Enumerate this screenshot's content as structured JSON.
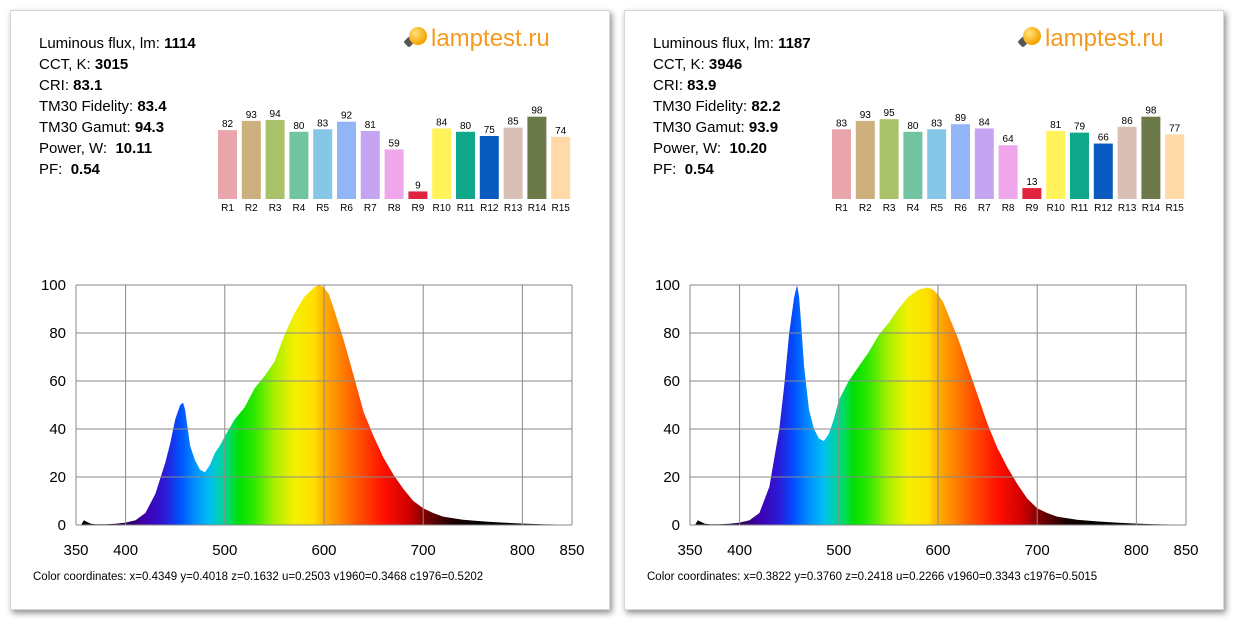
{
  "cards": [
    {
      "stats": [
        {
          "label": "Luminous flux, lm:",
          "value": "1114"
        },
        {
          "label": "CCT, K:",
          "value": "3015"
        },
        {
          "label": "CRI:",
          "value": "83.1"
        },
        {
          "label": "TM30 Fidelity:",
          "value": "83.4"
        },
        {
          "label": "TM30 Gamut:",
          "value": "94.3"
        },
        {
          "label": "Power, W:",
          "value": "10.11"
        },
        {
          "label": "PF:",
          "value": "0.54"
        }
      ],
      "logo": "lamptest.ru",
      "coords": "Color coordinates: x=0.4349 y=0.4018 z=0.1632 u=0.2503 v1960=0.3468 c1976=0.5202"
    },
    {
      "stats": [
        {
          "label": "Luminous flux, lm:",
          "value": "1187"
        },
        {
          "label": "CCT, K:",
          "value": "3946"
        },
        {
          "label": "CRI:",
          "value": "83.9"
        },
        {
          "label": "TM30 Fidelity:",
          "value": "82.2"
        },
        {
          "label": "TM30 Gamut:",
          "value": "93.9"
        },
        {
          "label": "Power, W:",
          "value": "10.20"
        },
        {
          "label": "PF:",
          "value": "0.54"
        }
      ],
      "logo": "lamptest.ru",
      "coords": "Color coordinates: x=0.3822 y=0.3760 z=0.2418 u=0.2266 v1960=0.3343 c1976=0.5015"
    }
  ],
  "chart_data": [
    {
      "type": "bar",
      "categories": [
        "R1",
        "R2",
        "R3",
        "R4",
        "R5",
        "R6",
        "R7",
        "R8",
        "R9",
        "R10",
        "R11",
        "R12",
        "R13",
        "R14",
        "R15"
      ],
      "values": [
        82,
        93,
        94,
        80,
        83,
        92,
        81,
        59,
        9,
        84,
        80,
        75,
        85,
        98,
        74
      ],
      "colors": [
        "#e8a6ac",
        "#cdb07e",
        "#a9c26a",
        "#72c4a0",
        "#86c6e6",
        "#92b5f7",
        "#c5a4f2",
        "#efa6eb",
        "#e0243e",
        "#fff359",
        "#10a88a",
        "#0a5bbf",
        "#d9c0b6",
        "#6c7a49",
        "#ffd9a6"
      ],
      "ylim": [
        0,
        100
      ]
    },
    {
      "type": "area",
      "xlim": [
        350,
        850
      ],
      "ylim": [
        0,
        100
      ],
      "xticks": [
        350,
        400,
        500,
        600,
        700,
        800,
        850
      ],
      "yticks": [
        0,
        20,
        40,
        60,
        80,
        100
      ],
      "grid": true,
      "x": [
        350,
        355,
        358,
        360,
        365,
        370,
        380,
        390,
        400,
        410,
        420,
        430,
        440,
        445,
        450,
        455,
        458,
        460,
        462,
        465,
        470,
        475,
        480,
        485,
        490,
        495,
        500,
        510,
        520,
        530,
        540,
        550,
        560,
        570,
        580,
        590,
        595,
        600,
        605,
        610,
        620,
        630,
        640,
        650,
        660,
        670,
        680,
        690,
        700,
        710,
        720,
        740,
        760,
        780,
        800,
        820,
        850
      ],
      "y": [
        0,
        0,
        2,
        1.5,
        0.5,
        0.3,
        0.3,
        0.5,
        1,
        2,
        5,
        13,
        26,
        34,
        44,
        50,
        51,
        48,
        42,
        33,
        27,
        23,
        22,
        25,
        30,
        33,
        37,
        44,
        49,
        57,
        62,
        68,
        79,
        88,
        95,
        99,
        100,
        99,
        96,
        90,
        77,
        62,
        47,
        37,
        28,
        21,
        15,
        10,
        7,
        5,
        3.5,
        2.2,
        1.5,
        1,
        0.6,
        0.3,
        0.1
      ]
    },
    {
      "type": "bar",
      "categories": [
        "R1",
        "R2",
        "R3",
        "R4",
        "R5",
        "R6",
        "R7",
        "R8",
        "R9",
        "R10",
        "R11",
        "R12",
        "R13",
        "R14",
        "R15"
      ],
      "values": [
        83,
        93,
        95,
        80,
        83,
        89,
        84,
        64,
        13,
        81,
        79,
        66,
        86,
        98,
        77
      ],
      "colors": [
        "#e8a6ac",
        "#cdb07e",
        "#a9c26a",
        "#72c4a0",
        "#86c6e6",
        "#92b5f7",
        "#c5a4f2",
        "#efa6eb",
        "#e0243e",
        "#fff359",
        "#10a88a",
        "#0a5bbf",
        "#d9c0b6",
        "#6c7a49",
        "#ffd9a6"
      ],
      "ylim": [
        0,
        100
      ]
    },
    {
      "type": "area",
      "xlim": [
        350,
        850
      ],
      "ylim": [
        0,
        100
      ],
      "xticks": [
        350,
        400,
        500,
        600,
        700,
        800,
        850
      ],
      "yticks": [
        0,
        20,
        40,
        60,
        80,
        100
      ],
      "grid": true,
      "x": [
        350,
        355,
        358,
        360,
        365,
        370,
        380,
        390,
        400,
        410,
        420,
        430,
        440,
        445,
        450,
        455,
        458,
        460,
        462,
        465,
        470,
        475,
        480,
        485,
        490,
        495,
        500,
        510,
        520,
        530,
        540,
        550,
        560,
        570,
        580,
        590,
        595,
        600,
        605,
        610,
        620,
        630,
        640,
        650,
        660,
        670,
        680,
        690,
        700,
        710,
        720,
        740,
        760,
        780,
        800,
        820,
        850
      ],
      "y": [
        0,
        0,
        2,
        1.5,
        0.5,
        0.3,
        0.3,
        0.5,
        1,
        2,
        5,
        16,
        40,
        58,
        80,
        95,
        100,
        95,
        84,
        66,
        48,
        40,
        36,
        35,
        38,
        44,
        52,
        60,
        66,
        72,
        79,
        84,
        90,
        95,
        98,
        99,
        98,
        96,
        93,
        88,
        78,
        66,
        54,
        42,
        32,
        24,
        17,
        11,
        7,
        5,
        3.5,
        2.2,
        1.5,
        1,
        0.6,
        0.3,
        0.1
      ]
    }
  ]
}
